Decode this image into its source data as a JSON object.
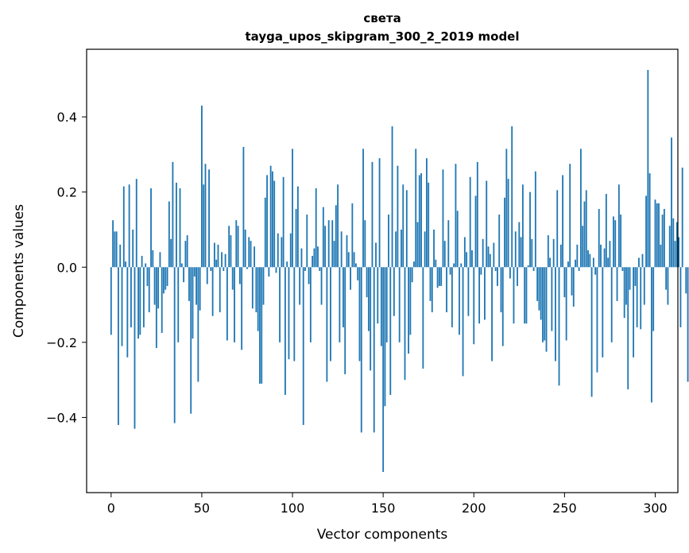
{
  "chart_data": {
    "type": "bar",
    "title": "света",
    "subtitle": "tayga_upos_skipgram_300_2_2019 model",
    "xlabel": "Vector components",
    "ylabel": "Components values",
    "xlim": [
      -13.5,
      312.5
    ],
    "ylim": [
      -0.6,
      0.58
    ],
    "xticks": [
      0,
      50,
      100,
      150,
      200,
      250,
      300
    ],
    "yticks": [
      -0.4,
      -0.2,
      0.0,
      0.2,
      0.4
    ],
    "ytick_labels": [
      "−0.4",
      "−0.2",
      "0.0",
      "0.2",
      "0.4"
    ],
    "grid": false,
    "bar_color": "#1f77b4",
    "values": [
      -0.18,
      0.125,
      0.095,
      0.095,
      -0.42,
      0.06,
      -0.21,
      0.215,
      0.015,
      -0.24,
      0.22,
      -0.16,
      0.1,
      -0.43,
      0.235,
      -0.19,
      -0.18,
      0.03,
      -0.16,
      0.01,
      -0.05,
      -0.12,
      0.21,
      0.045,
      -0.1,
      -0.215,
      -0.11,
      0.04,
      -0.175,
      -0.07,
      -0.06,
      -0.05,
      0.175,
      0.075,
      0.28,
      -0.415,
      0.225,
      -0.2,
      0.21,
      0.01,
      -0.04,
      0.07,
      0.085,
      -0.09,
      -0.39,
      -0.19,
      -0.025,
      -0.1,
      -0.305,
      -0.115,
      0.43,
      0.22,
      0.275,
      -0.045,
      0.26,
      -0.01,
      -0.13,
      0.065,
      0.02,
      0.06,
      -0.12,
      0.04,
      -0.01,
      0.035,
      -0.195,
      0.11,
      0.085,
      -0.06,
      -0.2,
      0.125,
      0.11,
      -0.045,
      -0.22,
      0.32,
      0.1,
      -0.005,
      0.08,
      0.07,
      -0.11,
      0.055,
      -0.12,
      -0.17,
      -0.31,
      -0.31,
      -0.1,
      0.185,
      0.245,
      -0.025,
      0.27,
      0.255,
      0.23,
      -0.015,
      0.09,
      -0.2,
      0.08,
      0.24,
      -0.34,
      0.015,
      -0.245,
      0.09,
      0.315,
      -0.25,
      0.155,
      0.215,
      -0.1,
      0.05,
      -0.42,
      -0.01,
      0.14,
      -0.045,
      -0.2,
      0.03,
      0.05,
      0.21,
      0.055,
      -0.01,
      -0.1,
      0.16,
      0.11,
      -0.305,
      0.125,
      -0.25,
      0.125,
      0.07,
      0.165,
      0.22,
      -0.2,
      0.095,
      -0.16,
      -0.285,
      0.085,
      0.04,
      -0.06,
      0.17,
      0.04,
      0.01,
      -0.035,
      -0.25,
      -0.44,
      0.315,
      0.125,
      -0.08,
      -0.17,
      -0.275,
      0.28,
      -0.44,
      0.065,
      -0.15,
      0.29,
      -0.21,
      -0.545,
      -0.37,
      -0.2,
      0.14,
      -0.34,
      0.375,
      -0.13,
      0.095,
      0.27,
      -0.2,
      0.1,
      0.22,
      -0.3,
      0.205,
      -0.23,
      -0.18,
      -0.04,
      0.015,
      0.315,
      0.12,
      0.245,
      0.25,
      -0.27,
      0.095,
      0.29,
      0.225,
      -0.09,
      -0.12,
      0.1,
      0.02,
      -0.055,
      -0.05,
      -0.05,
      0.26,
      0.07,
      -0.12,
      0.125,
      -0.02,
      -0.16,
      0.01,
      0.275,
      0.15,
      -0.18,
      0.01,
      -0.29,
      0.08,
      0.04,
      -0.13,
      0.24,
      0.045,
      -0.205,
      0.19,
      0.28,
      -0.15,
      -0.02,
      0.075,
      -0.14,
      0.23,
      0.055,
      0.035,
      -0.25,
      0.065,
      -0.01,
      -0.05,
      0.14,
      -0.12,
      -0.21,
      0.185,
      0.315,
      0.235,
      -0.03,
      0.375,
      -0.15,
      0.095,
      -0.05,
      0.12,
      0.08,
      0.22,
      -0.15,
      -0.15,
      0.005,
      0.2,
      0.075,
      -0.01,
      0.255,
      -0.09,
      -0.115,
      -0.14,
      -0.2,
      -0.195,
      -0.225,
      0.085,
      0.025,
      -0.17,
      0.075,
      -0.25,
      0.205,
      -0.315,
      0.06,
      0.245,
      -0.08,
      -0.195,
      0.015,
      0.275,
      -0.075,
      -0.105,
      0.02,
      0.06,
      -0.01,
      0.315,
      0.11,
      0.175,
      0.205,
      0.045,
      0.035,
      -0.345,
      0.025,
      -0.02,
      -0.28,
      0.155,
      0.06,
      -0.24,
      0.05,
      0.195,
      0.025,
      0.07,
      -0.2,
      0.135,
      0.125,
      -0.09,
      0.22,
      0.14,
      -0.01,
      -0.135,
      -0.1,
      -0.325,
      -0.06,
      0.0,
      -0.24,
      -0.05,
      -0.16,
      0.025,
      -0.165,
      0.035,
      -0.1,
      0.19,
      0.525,
      0.25,
      -0.36,
      -0.17,
      0.18,
      0.17,
      0.17,
      0.06,
      0.14,
      0.155,
      -0.06,
      -0.1,
      0.11,
      0.345,
      0.13,
      0.07,
      0.12,
      0.08,
      -0.16,
      0.265,
      0.0,
      -0.07,
      -0.305
    ]
  }
}
